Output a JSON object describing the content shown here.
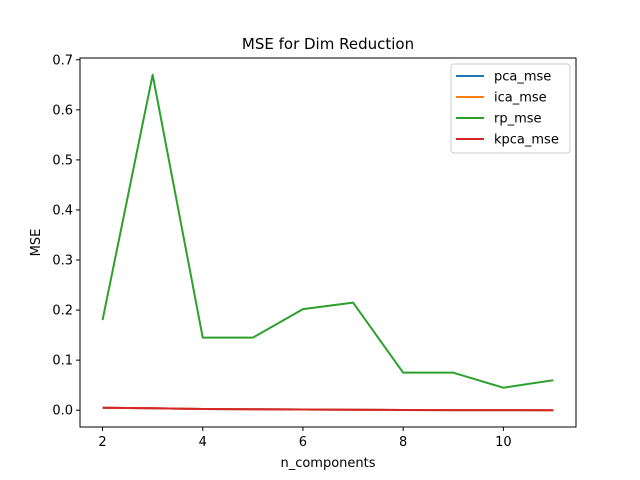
{
  "chart_data": {
    "type": "line",
    "title": "MSE for Dim Reduction",
    "xlabel": "n_components",
    "ylabel": "MSE",
    "x": [
      2,
      3,
      4,
      5,
      6,
      7,
      8,
      9,
      10,
      11
    ],
    "xlim": [
      1.55,
      11.45
    ],
    "ylim": [
      -0.0335,
      0.7035
    ],
    "xticks": [
      2,
      4,
      6,
      8,
      10
    ],
    "yticks": [
      0.0,
      0.1,
      0.2,
      0.3,
      0.4,
      0.5,
      0.6,
      0.7
    ],
    "ytick_labels": [
      "0.0",
      "0.1",
      "0.2",
      "0.3",
      "0.4",
      "0.5",
      "0.6",
      "0.7"
    ],
    "grid": false,
    "legend_position": "top-right",
    "series": [
      {
        "name": "pca_mse",
        "color": "#1f77b4",
        "values": [
          0.005,
          0.004,
          0.0025,
          0.002,
          0.0015,
          0.001,
          0.0005,
          0.0002,
          0.0001,
          0.0
        ]
      },
      {
        "name": "ica_mse",
        "color": "#ff7f0e",
        "values": [
          0.005,
          0.004,
          0.0025,
          0.002,
          0.0015,
          0.001,
          0.0005,
          0.0002,
          0.0001,
          0.0
        ]
      },
      {
        "name": "rp_mse",
        "color": "#2ca02c",
        "values": [
          0.18,
          0.67,
          0.145,
          0.145,
          0.202,
          0.215,
          0.075,
          0.075,
          0.045,
          0.06
        ]
      },
      {
        "name": "kpca_mse",
        "color": "#d62728",
        "values": [
          0.005,
          0.004,
          0.0025,
          0.002,
          0.0015,
          0.001,
          0.0005,
          0.0002,
          0.0001,
          0.0
        ]
      }
    ]
  }
}
